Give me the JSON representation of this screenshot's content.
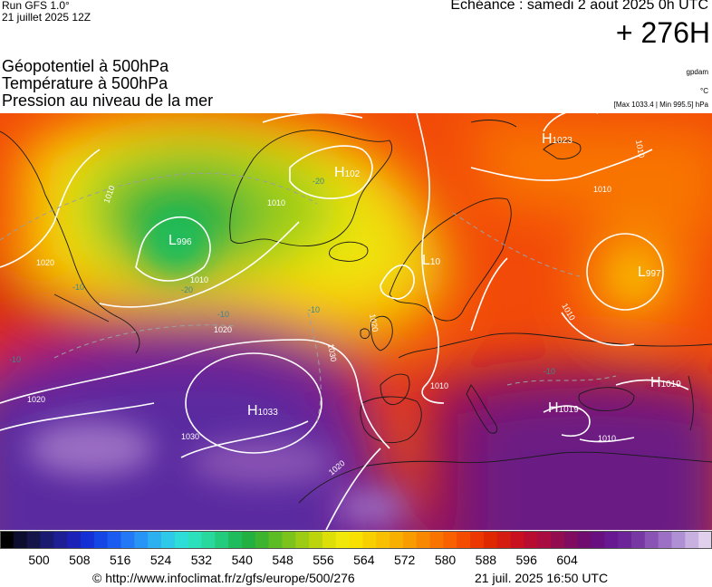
{
  "header": {
    "run": "Run GFS 1.0°",
    "run_date": "21 juillet 2025 12Z",
    "valid": "Echéance : samedi 2 aout 2025 0h UTC",
    "lead": "+ 276H"
  },
  "layers": [
    "Géopotentiel à 500hPa",
    "Température à 500hPa",
    "Pression au niveau de la mer"
  ],
  "units": {
    "geopotential": "gpdam",
    "temperature": "°C",
    "pressure_extremes": "[Max 1033.4 | Min 995.5] hPa"
  },
  "centers": [
    {
      "type": "L",
      "value": "996"
    },
    {
      "type": "H",
      "value": "102"
    },
    {
      "type": "L",
      "value": "10"
    },
    {
      "type": "H",
      "value": "1023"
    },
    {
      "type": "L",
      "value": "997"
    },
    {
      "type": "H",
      "value": "1033"
    },
    {
      "type": "H",
      "value": "1019"
    },
    {
      "type": "H",
      "value": "1019"
    }
  ],
  "isobar_labels": [
    "1020",
    "1010",
    "1020",
    "1030",
    "1020",
    "1030",
    "1020",
    "1010",
    "1010",
    "1010",
    "1010",
    "1010",
    "1010",
    "1010",
    "1020"
  ],
  "isotherm_labels": [
    "-20",
    "-10",
    "-10",
    "-20",
    "-10",
    "-10",
    "-10"
  ],
  "colorbar": {
    "ticks": [
      "500",
      "508",
      "516",
      "524",
      "532",
      "540",
      "548",
      "556",
      "564",
      "572",
      "580",
      "588",
      "596",
      "604"
    ],
    "colors": [
      "#000000",
      "#0d0d2e",
      "#15154a",
      "#1a1a70",
      "#1f1f95",
      "#1a22b8",
      "#1430d4",
      "#1446e6",
      "#1a5cf0",
      "#2278f5",
      "#2894f5",
      "#2cb0f0",
      "#2ec8e8",
      "#2edcd8",
      "#2ce0bc",
      "#28d89c",
      "#22cc7c",
      "#1ebc5c",
      "#22b040",
      "#3cb430",
      "#5cbc24",
      "#7cc41c",
      "#9ccc14",
      "#bcd40c",
      "#dce008",
      "#f0e808",
      "#f8e000",
      "#f8d000",
      "#f8c000",
      "#f8b000",
      "#f89c00",
      "#f88800",
      "#f87400",
      "#f86000",
      "#f44c00",
      "#ec3800",
      "#e02800",
      "#d41c10",
      "#c81020",
      "#b80c30",
      "#a80c40",
      "#940c50",
      "#800c60",
      "#700c70",
      "#681080",
      "#681890",
      "#6c2498",
      "#7838a4",
      "#8a54b4",
      "#9c70c4",
      "#b090d4",
      "#c8b0e0",
      "#e0d0ec"
    ]
  },
  "footer": {
    "copyright": "© http://www.infoclimat.fr/z/gfs/europe/500/276",
    "generated": "21 juil. 2025 16:50 UTC"
  }
}
